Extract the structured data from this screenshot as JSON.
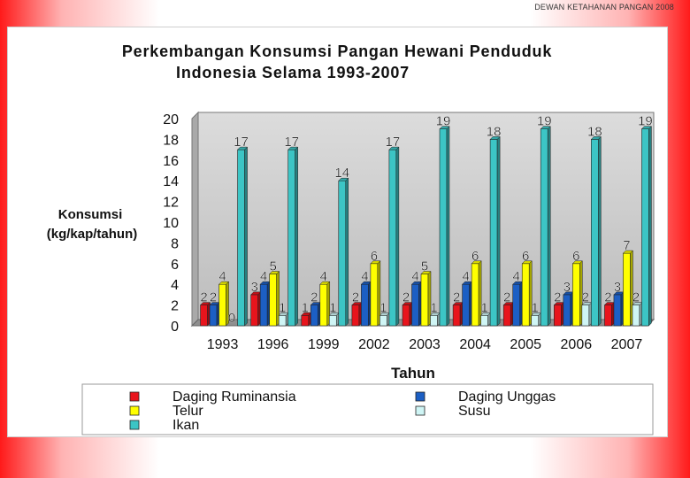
{
  "header_note": "DEWAN KETAHANAN PANGAN 2008",
  "chart_data": {
    "type": "bar",
    "title_line1": "Perkembangan Konsumsi Pangan Hewani Penduduk",
    "title_line2": "Indonesia Selama 1993-2007",
    "ylabel_line1": "Konsumsi",
    "ylabel_line2": "(kg/kap/tahun)",
    "xlabel": "Tahun",
    "ylim": [
      0,
      20
    ],
    "yticks": [
      "0",
      "2",
      "4",
      "6",
      "8",
      "10",
      "12",
      "14",
      "16",
      "18",
      "20"
    ],
    "categories": [
      "1993",
      "1996",
      "1999",
      "2002",
      "2003",
      "2004",
      "2005",
      "2006",
      "2007"
    ],
    "grid": false,
    "legend_position": "bottom",
    "series": [
      {
        "name": "Daging Ruminansia",
        "color": "#e8141c",
        "values": [
          2,
          3,
          1,
          2,
          2,
          2,
          2,
          2,
          2
        ]
      },
      {
        "name": "Daging Unggas",
        "color": "#1c5fc4",
        "values": [
          2,
          4,
          2,
          4,
          4,
          4,
          4,
          3,
          3
        ]
      },
      {
        "name": "Telur",
        "color": "#ffff00",
        "values": [
          4,
          5,
          4,
          6,
          5,
          6,
          6,
          6,
          7
        ]
      },
      {
        "name": "Susu",
        "color": "#cff5f5",
        "values": [
          0,
          1,
          1,
          1,
          1,
          1,
          1,
          2,
          2
        ]
      },
      {
        "name": "Ikan",
        "color": "#3cc5c5",
        "values": [
          17,
          17,
          14,
          17,
          19,
          18,
          19,
          18,
          19
        ]
      }
    ]
  }
}
